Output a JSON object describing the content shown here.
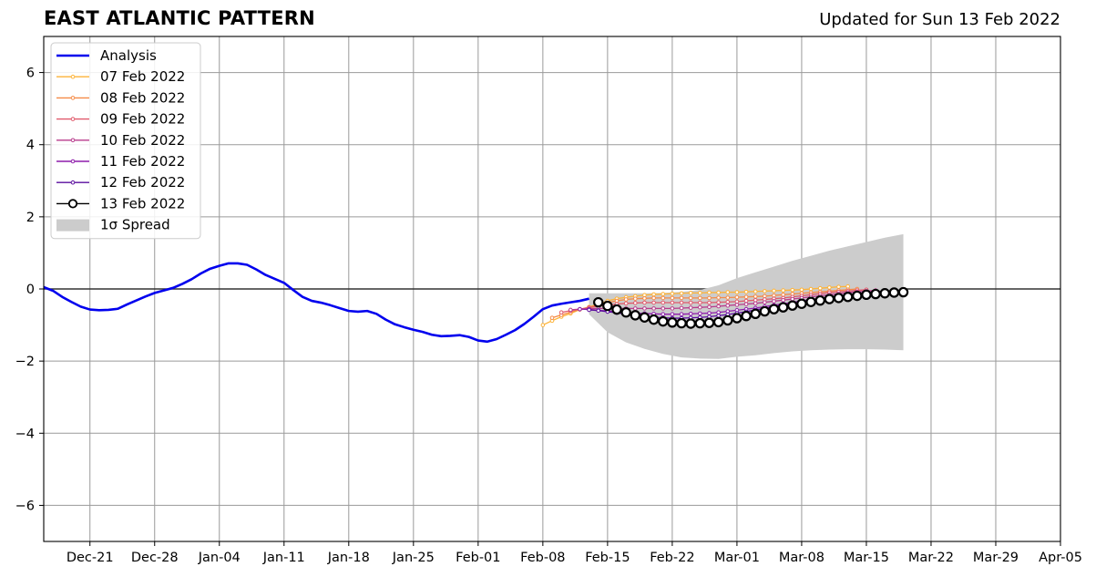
{
  "chart_data": {
    "type": "line",
    "title": "EAST ATLANTIC PATTERN",
    "subtitle": "Updated for Sun 13 Feb 2022",
    "xlabel": "",
    "ylabel": "",
    "x_range": [
      "2021-12-16",
      "2022-04-05"
    ],
    "ylim": [
      -7,
      7
    ],
    "yticks": [
      -6,
      -4,
      -2,
      0,
      2,
      4,
      6
    ],
    "ytick_labels": [
      "−6",
      "−4",
      "−2",
      "0",
      "2",
      "4",
      "6"
    ],
    "xtick_dates": [
      "2021-12-21",
      "2021-12-28",
      "2022-01-04",
      "2022-01-11",
      "2022-01-18",
      "2022-01-25",
      "2022-02-01",
      "2022-02-08",
      "2022-02-15",
      "2022-02-22",
      "2022-03-01",
      "2022-03-08",
      "2022-03-15",
      "2022-03-22",
      "2022-03-29",
      "2022-04-05"
    ],
    "xtick_labels": [
      "Dec-21",
      "Dec-28",
      "Jan-04",
      "Jan-11",
      "Jan-18",
      "Jan-25",
      "Feb-01",
      "Feb-08",
      "Feb-15",
      "Feb-22",
      "Mar-01",
      "Mar-08",
      "Mar-15",
      "Mar-22",
      "Mar-29",
      "Apr-05"
    ],
    "grid": true,
    "legend_position": "top-left",
    "series": [
      {
        "name": "Analysis",
        "color": "#0000ee",
        "style": "line",
        "x": [
          "2021-12-16",
          "2021-12-17",
          "2021-12-18",
          "2021-12-19",
          "2021-12-20",
          "2021-12-21",
          "2021-12-22",
          "2021-12-23",
          "2021-12-24",
          "2021-12-25",
          "2021-12-26",
          "2021-12-27",
          "2021-12-28",
          "2021-12-29",
          "2021-12-30",
          "2021-12-31",
          "2022-01-01",
          "2022-01-02",
          "2022-01-03",
          "2022-01-04",
          "2022-01-05",
          "2022-01-06",
          "2022-01-07",
          "2022-01-08",
          "2022-01-09",
          "2022-01-10",
          "2022-01-11",
          "2022-01-12",
          "2022-01-13",
          "2022-01-14",
          "2022-01-15",
          "2022-01-16",
          "2022-01-17",
          "2022-01-18",
          "2022-01-19",
          "2022-01-20",
          "2022-01-21",
          "2022-01-22",
          "2022-01-23",
          "2022-01-24",
          "2022-01-25",
          "2022-01-26",
          "2022-01-27",
          "2022-01-28",
          "2022-01-29",
          "2022-01-30",
          "2022-01-31",
          "2022-02-01",
          "2022-02-02",
          "2022-02-03",
          "2022-02-04",
          "2022-02-05",
          "2022-02-06",
          "2022-02-07",
          "2022-02-08",
          "2022-02-09",
          "2022-02-10",
          "2022-02-11",
          "2022-02-12",
          "2022-02-13"
        ],
        "values": [
          0.05,
          -0.05,
          -0.22,
          -0.36,
          -0.49,
          -0.57,
          -0.59,
          -0.58,
          -0.55,
          -0.43,
          -0.32,
          -0.21,
          -0.11,
          -0.04,
          0.03,
          0.14,
          0.27,
          0.43,
          0.56,
          0.64,
          0.71,
          0.71,
          0.67,
          0.54,
          0.39,
          0.28,
          0.17,
          -0.03,
          -0.22,
          -0.33,
          -0.38,
          -0.45,
          -0.53,
          -0.61,
          -0.63,
          -0.61,
          -0.69,
          -0.85,
          -0.98,
          -1.06,
          -1.13,
          -1.19,
          -1.27,
          -1.31,
          -1.3,
          -1.28,
          -1.33,
          -1.43,
          -1.46,
          -1.39,
          -1.27,
          -1.14,
          -0.97,
          -0.77,
          -0.56,
          -0.46,
          -0.41,
          -0.37,
          -0.33,
          -0.27
        ]
      },
      {
        "name": "07 Feb 2022",
        "color": "#fdb338",
        "style": "line-dots",
        "x": [
          "2022-02-08",
          "2022-02-09",
          "2022-02-10",
          "2022-02-11",
          "2022-02-12",
          "2022-02-13",
          "2022-02-14",
          "2022-02-15",
          "2022-02-16",
          "2022-02-17",
          "2022-02-18",
          "2022-02-19",
          "2022-02-20",
          "2022-02-21",
          "2022-02-22",
          "2022-02-23",
          "2022-02-24",
          "2022-02-25",
          "2022-02-26",
          "2022-02-27",
          "2022-02-28",
          "2022-03-01",
          "2022-03-02",
          "2022-03-03",
          "2022-03-04",
          "2022-03-05",
          "2022-03-06",
          "2022-03-07",
          "2022-03-08",
          "2022-03-09",
          "2022-03-10",
          "2022-03-11",
          "2022-03-12",
          "2022-03-13"
        ],
        "values": [
          -1.0,
          -0.88,
          -0.77,
          -0.68,
          -0.57,
          -0.5,
          -0.42,
          -0.33,
          -0.27,
          -0.23,
          -0.2,
          -0.17,
          -0.15,
          -0.14,
          -0.13,
          -0.12,
          -0.11,
          -0.11,
          -0.1,
          -0.1,
          -0.09,
          -0.09,
          -0.08,
          -0.07,
          -0.06,
          -0.05,
          -0.04,
          -0.03,
          -0.02,
          0.0,
          0.02,
          0.04,
          0.06,
          0.07
        ]
      },
      {
        "name": "08 Feb 2022",
        "color": "#f58b47",
        "style": "line-dots",
        "x": [
          "2022-02-09",
          "2022-02-10",
          "2022-02-11",
          "2022-02-12",
          "2022-02-13",
          "2022-02-14",
          "2022-02-15",
          "2022-02-16",
          "2022-02-17",
          "2022-02-18",
          "2022-02-19",
          "2022-02-20",
          "2022-02-21",
          "2022-02-22",
          "2022-02-23",
          "2022-02-24",
          "2022-02-25",
          "2022-02-26",
          "2022-02-27",
          "2022-02-28",
          "2022-03-01",
          "2022-03-02",
          "2022-03-03",
          "2022-03-04",
          "2022-03-05",
          "2022-03-06",
          "2022-03-07",
          "2022-03-08",
          "2022-03-09",
          "2022-03-10",
          "2022-03-11",
          "2022-03-12",
          "2022-03-13",
          "2022-03-14"
        ],
        "values": [
          -0.8,
          -0.72,
          -0.64,
          -0.57,
          -0.51,
          -0.44,
          -0.38,
          -0.33,
          -0.29,
          -0.27,
          -0.26,
          -0.25,
          -0.25,
          -0.25,
          -0.25,
          -0.25,
          -0.25,
          -0.25,
          -0.24,
          -0.24,
          -0.23,
          -0.22,
          -0.21,
          -0.2,
          -0.18,
          -0.16,
          -0.14,
          -0.12,
          -0.1,
          -0.08,
          -0.06,
          -0.04,
          -0.02,
          0.0
        ]
      },
      {
        "name": "09 Feb 2022",
        "color": "#e0596b",
        "style": "line-dots",
        "x": [
          "2022-02-10",
          "2022-02-11",
          "2022-02-12",
          "2022-02-13",
          "2022-02-14",
          "2022-02-15",
          "2022-02-16",
          "2022-02-17",
          "2022-02-18",
          "2022-02-19",
          "2022-02-20",
          "2022-02-21",
          "2022-02-22",
          "2022-02-23",
          "2022-02-24",
          "2022-02-25",
          "2022-02-26",
          "2022-02-27",
          "2022-02-28",
          "2022-03-01",
          "2022-03-02",
          "2022-03-03",
          "2022-03-04",
          "2022-03-05",
          "2022-03-06",
          "2022-03-07",
          "2022-03-08",
          "2022-03-09",
          "2022-03-10",
          "2022-03-11",
          "2022-03-12",
          "2022-03-13",
          "2022-03-14",
          "2022-03-15"
        ],
        "values": [
          -0.65,
          -0.6,
          -0.56,
          -0.52,
          -0.48,
          -0.45,
          -0.42,
          -0.4,
          -0.39,
          -0.38,
          -0.38,
          -0.38,
          -0.38,
          -0.38,
          -0.38,
          -0.38,
          -0.38,
          -0.37,
          -0.36,
          -0.35,
          -0.33,
          -0.31,
          -0.29,
          -0.27,
          -0.25,
          -0.22,
          -0.19,
          -0.16,
          -0.13,
          -0.1,
          -0.08,
          -0.06,
          -0.04,
          -0.02
        ]
      },
      {
        "name": "10 Feb 2022",
        "color": "#b83b8c",
        "style": "line-dots",
        "x": [
          "2022-02-11",
          "2022-02-12",
          "2022-02-13",
          "2022-02-14",
          "2022-02-15",
          "2022-02-16",
          "2022-02-17",
          "2022-02-18",
          "2022-02-19",
          "2022-02-20",
          "2022-02-21",
          "2022-02-22",
          "2022-02-23",
          "2022-02-24",
          "2022-02-25",
          "2022-02-26",
          "2022-02-27",
          "2022-02-28",
          "2022-03-01",
          "2022-03-02",
          "2022-03-03",
          "2022-03-04",
          "2022-03-05",
          "2022-03-06",
          "2022-03-07",
          "2022-03-08",
          "2022-03-09",
          "2022-03-10",
          "2022-03-11",
          "2022-03-12",
          "2022-03-13",
          "2022-03-14",
          "2022-03-15",
          "2022-03-16"
        ],
        "values": [
          -0.58,
          -0.56,
          -0.55,
          -0.54,
          -0.54,
          -0.54,
          -0.54,
          -0.54,
          -0.54,
          -0.54,
          -0.54,
          -0.54,
          -0.53,
          -0.52,
          -0.51,
          -0.5,
          -0.48,
          -0.46,
          -0.44,
          -0.42,
          -0.4,
          -0.37,
          -0.34,
          -0.31,
          -0.28,
          -0.25,
          -0.22,
          -0.19,
          -0.16,
          -0.13,
          -0.1,
          -0.08,
          -0.06,
          -0.04
        ]
      },
      {
        "name": "11 Feb 2022",
        "color": "#8e1cab",
        "style": "line-dots",
        "x": [
          "2022-02-12",
          "2022-02-13",
          "2022-02-14",
          "2022-02-15",
          "2022-02-16",
          "2022-02-17",
          "2022-02-18",
          "2022-02-19",
          "2022-02-20",
          "2022-02-21",
          "2022-02-22",
          "2022-02-23",
          "2022-02-24",
          "2022-02-25",
          "2022-02-26",
          "2022-02-27",
          "2022-02-28",
          "2022-03-01",
          "2022-03-02",
          "2022-03-03",
          "2022-03-04",
          "2022-03-05",
          "2022-03-06",
          "2022-03-07",
          "2022-03-08",
          "2022-03-09",
          "2022-03-10",
          "2022-03-11",
          "2022-03-12",
          "2022-03-13",
          "2022-03-14",
          "2022-03-15",
          "2022-03-16",
          "2022-03-17"
        ],
        "values": [
          -0.56,
          -0.57,
          -0.59,
          -0.61,
          -0.63,
          -0.65,
          -0.67,
          -0.68,
          -0.69,
          -0.7,
          -0.7,
          -0.7,
          -0.69,
          -0.68,
          -0.67,
          -0.65,
          -0.62,
          -0.59,
          -0.56,
          -0.53,
          -0.49,
          -0.45,
          -0.41,
          -0.37,
          -0.33,
          -0.29,
          -0.26,
          -0.22,
          -0.19,
          -0.16,
          -0.13,
          -0.1,
          -0.08,
          -0.06
        ]
      },
      {
        "name": "12 Feb 2022",
        "color": "#5a0d9e",
        "style": "line-dots",
        "x": [
          "2022-02-13",
          "2022-02-14",
          "2022-02-15",
          "2022-02-16",
          "2022-02-17",
          "2022-02-18",
          "2022-02-19",
          "2022-02-20",
          "2022-02-21",
          "2022-02-22",
          "2022-02-23",
          "2022-02-24",
          "2022-02-25",
          "2022-02-26",
          "2022-02-27",
          "2022-02-28",
          "2022-03-01",
          "2022-03-02",
          "2022-03-03",
          "2022-03-04",
          "2022-03-05",
          "2022-03-06",
          "2022-03-07",
          "2022-03-08",
          "2022-03-09",
          "2022-03-10",
          "2022-03-11",
          "2022-03-12",
          "2022-03-13",
          "2022-03-14",
          "2022-03-15",
          "2022-03-16",
          "2022-03-17",
          "2022-03-18"
        ],
        "values": [
          -0.58,
          -0.6,
          -0.63,
          -0.66,
          -0.7,
          -0.73,
          -0.76,
          -0.78,
          -0.8,
          -0.81,
          -0.81,
          -0.8,
          -0.79,
          -0.77,
          -0.74,
          -0.71,
          -0.67,
          -0.63,
          -0.58,
          -0.54,
          -0.49,
          -0.45,
          -0.41,
          -0.37,
          -0.33,
          -0.29,
          -0.26,
          -0.23,
          -0.2,
          -0.17,
          -0.14,
          -0.12,
          -0.1,
          -0.08
        ]
      },
      {
        "name": "13 Feb 2022",
        "color": "#000000",
        "style": "line-circles",
        "x": [
          "2022-02-14",
          "2022-02-15",
          "2022-02-16",
          "2022-02-17",
          "2022-02-18",
          "2022-02-19",
          "2022-02-20",
          "2022-02-21",
          "2022-02-22",
          "2022-02-23",
          "2022-02-24",
          "2022-02-25",
          "2022-02-26",
          "2022-02-27",
          "2022-02-28",
          "2022-03-01",
          "2022-03-02",
          "2022-03-03",
          "2022-03-04",
          "2022-03-05",
          "2022-03-06",
          "2022-03-07",
          "2022-03-08",
          "2022-03-09",
          "2022-03-10",
          "2022-03-11",
          "2022-03-12",
          "2022-03-13",
          "2022-03-14",
          "2022-03-15",
          "2022-03-16",
          "2022-03-17",
          "2022-03-18",
          "2022-03-19"
        ],
        "values": [
          -0.37,
          -0.47,
          -0.57,
          -0.65,
          -0.73,
          -0.79,
          -0.85,
          -0.9,
          -0.93,
          -0.95,
          -0.96,
          -0.95,
          -0.94,
          -0.92,
          -0.87,
          -0.81,
          -0.75,
          -0.69,
          -0.62,
          -0.56,
          -0.51,
          -0.46,
          -0.41,
          -0.36,
          -0.32,
          -0.28,
          -0.25,
          -0.22,
          -0.19,
          -0.16,
          -0.14,
          -0.12,
          -0.1,
          -0.09
        ]
      }
    ],
    "spread": {
      "name": "1σ Spread",
      "color": "#cccccc",
      "x": [
        "2022-02-13",
        "2022-02-15",
        "2022-02-17",
        "2022-02-19",
        "2022-02-21",
        "2022-02-23",
        "2022-02-25",
        "2022-02-27",
        "2022-03-01",
        "2022-03-03",
        "2022-03-05",
        "2022-03-07",
        "2022-03-09",
        "2022-03-11",
        "2022-03-13",
        "2022-03-15",
        "2022-03-17",
        "2022-03-19"
      ],
      "upper": [
        -0.12,
        -0.12,
        -0.12,
        -0.12,
        -0.11,
        -0.08,
        -0.03,
        0.1,
        0.3,
        0.46,
        0.62,
        0.78,
        0.92,
        1.06,
        1.18,
        1.3,
        1.42,
        1.52
      ],
      "lower": [
        -0.7,
        -1.2,
        -1.48,
        -1.66,
        -1.8,
        -1.9,
        -1.93,
        -1.94,
        -1.88,
        -1.84,
        -1.78,
        -1.73,
        -1.7,
        -1.68,
        -1.67,
        -1.67,
        -1.68,
        -1.7
      ]
    }
  }
}
